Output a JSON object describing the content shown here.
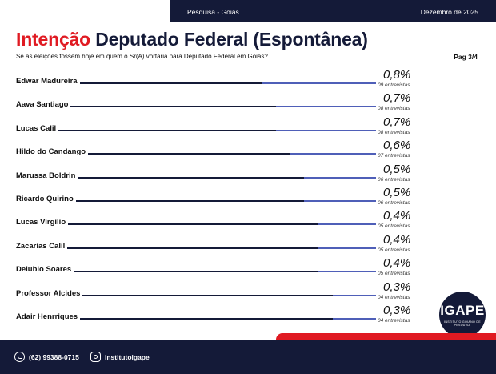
{
  "header": {
    "survey": "Pesquisa - Goiás",
    "date": "Dezembro de 2025"
  },
  "title": {
    "highlight": "Intenção",
    "rest": "Deputado Federal (Espontânea)"
  },
  "subtitle": "Se as eleições fossem hoje em quem o Sr(A) vortaria para Deputado Federal em Goiás?",
  "page": "Pag 3/4",
  "chart_data": {
    "type": "bar",
    "categories": [
      "Edwar Madureira",
      "Aava Santiago",
      "Lucas Calil",
      "Hildo do Candango",
      "Marussa Boldrin",
      "Ricardo Quirino",
      "Lucas Virgilio",
      "Zacarias Calil",
      "Delubio Soares",
      "Professor Alcides",
      "Adair Henrriques"
    ],
    "values": [
      0.8,
      0.7,
      0.7,
      0.6,
      0.5,
      0.5,
      0.4,
      0.4,
      0.4,
      0.3,
      0.3
    ],
    "value_labels": [
      "0,8%",
      "0,7%",
      "0,7%",
      "0,6%",
      "0,5%",
      "0,5%",
      "0,4%",
      "0,4%",
      "0,4%",
      "0,3%",
      "0,3%"
    ],
    "counts": [
      "09 entrevistas",
      "08 entrevistas",
      "08 entrevistas",
      "07 entrevistas",
      "06 entrevistas",
      "06 entrevistas",
      "05 entrevistas",
      "05 entrevistas",
      "05 entrevistas",
      "04 entrevistas",
      "04 entrevistas"
    ],
    "colors": {
      "track": "#141a38",
      "fill": "#4f5fb8"
    }
  },
  "logo": {
    "mark": "IGAPE",
    "subtext": "INSTITUTO GOIANO DE PESQUISA"
  },
  "footer": {
    "phone_icon": "whatsapp-icon",
    "phone": "(62) 99388-0715",
    "instagram_icon": "instagram-icon",
    "instagram": "institutoigape"
  },
  "colors": {
    "navy": "#141a38",
    "red": "#e01a22"
  }
}
